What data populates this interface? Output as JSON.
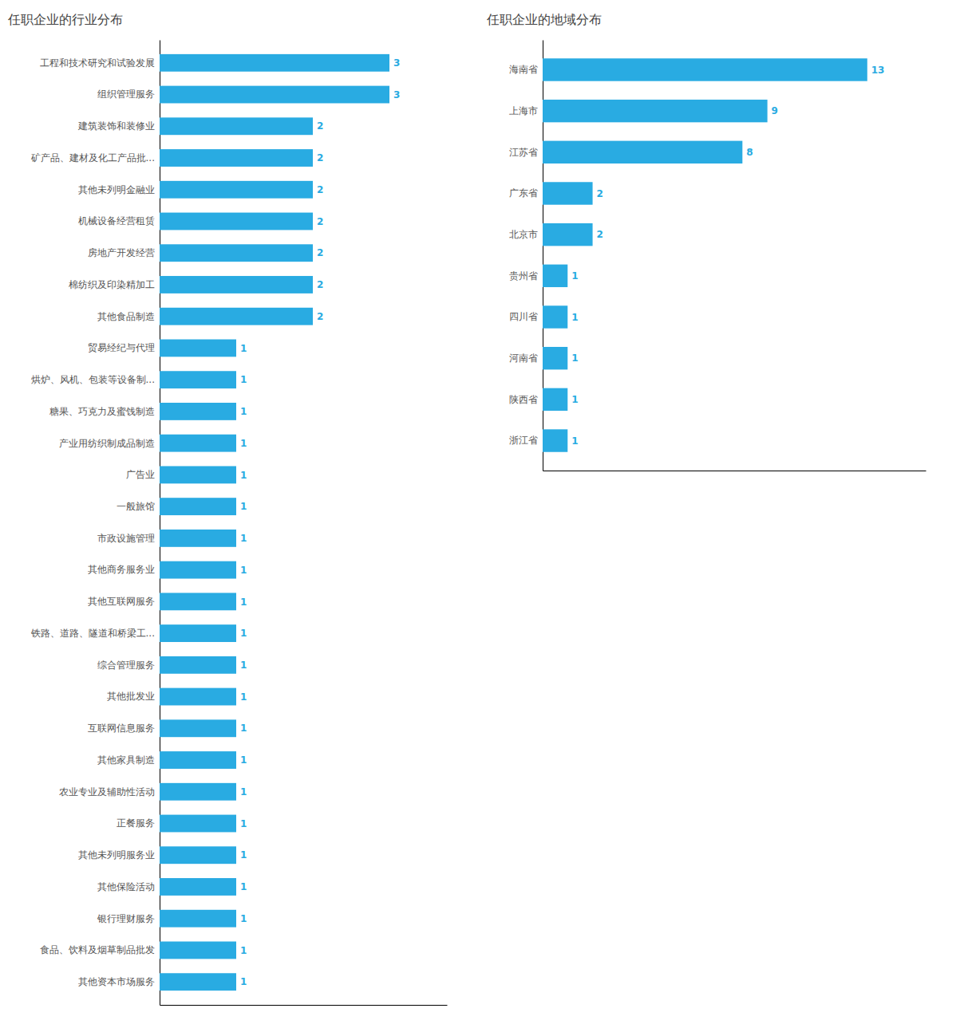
{
  "chart_data": [
    {
      "type": "bar",
      "orientation": "horizontal",
      "title": "任职企业的行业分布",
      "categories": [
        "工程和技术研究和试验发展",
        "组织管理服务",
        "建筑装饰和装修业",
        "矿产品、建材及化工产品批...",
        "其他未列明金融业",
        "机械设备经营租赁",
        "房地产开发经营",
        "棉纺织及印染精加工",
        "其他食品制造",
        "贸易经纪与代理",
        "烘炉、风机、包装等设备制...",
        "糖果、巧克力及蜜饯制造",
        "产业用纺织制成品制造",
        "广告业",
        "一般旅馆",
        "市政设施管理",
        "其他商务服务业",
        "其他互联网服务",
        "铁路、道路、隧道和桥梁工...",
        "综合管理服务",
        "其他批发业",
        "互联网信息服务",
        "其他家具制造",
        "农业专业及辅助性活动",
        "正餐服务",
        "其他未列明服务业",
        "其他保险活动",
        "银行理财服务",
        "食品、饮料及烟草制品批发",
        "其他资本市场服务"
      ],
      "values": [
        3,
        3,
        2,
        2,
        2,
        2,
        2,
        2,
        2,
        1,
        1,
        1,
        1,
        1,
        1,
        1,
        1,
        1,
        1,
        1,
        1,
        1,
        1,
        1,
        1,
        1,
        1,
        1,
        1,
        1
      ],
      "color": "#29ABE2",
      "xlim": [
        0,
        3.75
      ],
      "grid": false,
      "data_labels": true,
      "tick_labels": "y"
    },
    {
      "type": "bar",
      "orientation": "horizontal",
      "title": "任职企业的地域分布",
      "categories": [
        "海南省",
        "上海市",
        "江苏省",
        "广东省",
        "北京市",
        "贵州省",
        "四川省",
        "河南省",
        "陕西省",
        "浙江省"
      ],
      "values": [
        13,
        9,
        8,
        2,
        2,
        1,
        1,
        1,
        1,
        1
      ],
      "color": "#29ABE2",
      "xlim": [
        0,
        15.34
      ],
      "grid": false,
      "data_labels": true,
      "tick_labels": "y"
    }
  ]
}
